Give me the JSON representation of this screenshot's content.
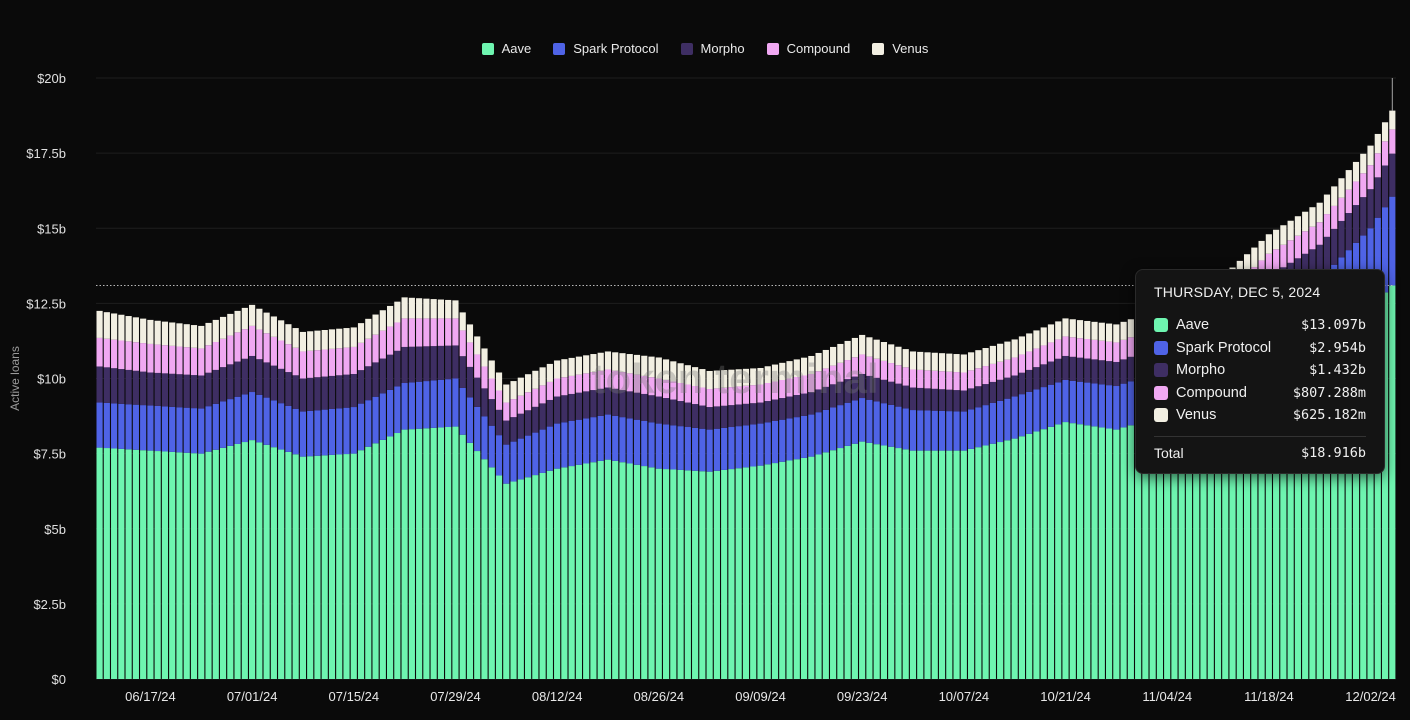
{
  "legend": [
    {
      "name": "Aave",
      "color": "#6ef5b0"
    },
    {
      "name": "Spark Protocol",
      "color": "#4f63e6"
    },
    {
      "name": "Morpho",
      "color": "#3e2e63"
    },
    {
      "name": "Compound",
      "color": "#f0a8f2"
    },
    {
      "name": "Venus",
      "color": "#f2efe2"
    }
  ],
  "watermark": "token terminal",
  "tooltip": {
    "date": "THURSDAY, DEC 5, 2024",
    "rows": [
      {
        "name": "Aave",
        "value": "$13.097b",
        "color": "#6ef5b0"
      },
      {
        "name": "Spark Protocol",
        "value": "$2.954b",
        "color": "#4f63e6"
      },
      {
        "name": "Morpho",
        "value": "$1.432b",
        "color": "#3e2e63"
      },
      {
        "name": "Compound",
        "value": "$807.288m",
        "color": "#f0a8f2"
      },
      {
        "name": "Venus",
        "value": "$625.182m",
        "color": "#f2efe2"
      }
    ],
    "total_label": "Total",
    "total_value": "$18.916b"
  },
  "chart_data": {
    "type": "bar",
    "stacked": true,
    "title": "",
    "xlabel": "",
    "ylabel": "Active loans",
    "ylim": [
      0,
      20
    ],
    "yticks": [
      0,
      2.5,
      5,
      7.5,
      10,
      12.5,
      15,
      17.5,
      20
    ],
    "ytick_labels": [
      "$0",
      "$2.5b",
      "$5b",
      "$7.5b",
      "$10b",
      "$12.5b",
      "$15b",
      "$17.5b",
      "$20b"
    ],
    "unit": "USD billions",
    "xtick_labels": [
      "06/17/24",
      "07/01/24",
      "07/15/24",
      "07/29/24",
      "08/12/24",
      "08/26/24",
      "09/09/24",
      "09/23/24",
      "10/07/24",
      "10/21/24",
      "11/04/24",
      "11/18/24",
      "12/02/24"
    ],
    "start_date": "2024-06-10",
    "end_date": "2024-12-05",
    "legend_position": "top-center",
    "grid": true,
    "highlight_date": "2024-12-05",
    "series": [
      {
        "name": "Aave",
        "color": "#6ef5b0",
        "dates": [
          "2024-06-10",
          "2024-06-17",
          "2024-06-24",
          "2024-07-01",
          "2024-07-08",
          "2024-07-15",
          "2024-07-22",
          "2024-07-29",
          "2024-08-05",
          "2024-08-12",
          "2024-08-19",
          "2024-08-26",
          "2024-09-02",
          "2024-09-09",
          "2024-09-16",
          "2024-09-23",
          "2024-09-30",
          "2024-10-07",
          "2024-10-14",
          "2024-10-21",
          "2024-10-28",
          "2024-11-04",
          "2024-11-11",
          "2024-11-18",
          "2024-11-25",
          "2024-12-02",
          "2024-12-05"
        ],
        "values": [
          7.7,
          7.6,
          7.5,
          7.95,
          7.4,
          7.5,
          8.3,
          8.4,
          6.5,
          7.0,
          7.3,
          7.0,
          6.9,
          7.1,
          7.4,
          7.9,
          7.6,
          7.6,
          8.0,
          8.55,
          8.3,
          8.8,
          9.4,
          10.6,
          11.2,
          12.4,
          13.097
        ]
      },
      {
        "name": "Spark Protocol",
        "color": "#4f63e6",
        "dates": [
          "2024-06-10",
          "2024-06-17",
          "2024-06-24",
          "2024-07-01",
          "2024-07-08",
          "2024-07-15",
          "2024-07-22",
          "2024-07-29",
          "2024-08-05",
          "2024-08-12",
          "2024-08-19",
          "2024-08-26",
          "2024-09-02",
          "2024-09-09",
          "2024-09-16",
          "2024-09-23",
          "2024-09-30",
          "2024-10-07",
          "2024-10-14",
          "2024-10-21",
          "2024-10-28",
          "2024-11-04",
          "2024-11-11",
          "2024-11-18",
          "2024-11-25",
          "2024-12-02",
          "2024-12-05"
        ],
        "values": [
          1.5,
          1.5,
          1.5,
          1.6,
          1.5,
          1.55,
          1.55,
          1.6,
          1.3,
          1.5,
          1.5,
          1.5,
          1.4,
          1.4,
          1.4,
          1.45,
          1.35,
          1.3,
          1.4,
          1.4,
          1.45,
          1.5,
          1.6,
          1.8,
          2.1,
          2.6,
          2.954
        ]
      },
      {
        "name": "Morpho",
        "color": "#3e2e63",
        "dates": [
          "2024-06-10",
          "2024-06-17",
          "2024-06-24",
          "2024-07-01",
          "2024-07-08",
          "2024-07-15",
          "2024-07-22",
          "2024-07-29",
          "2024-08-05",
          "2024-08-12",
          "2024-08-19",
          "2024-08-26",
          "2024-09-02",
          "2024-09-09",
          "2024-09-16",
          "2024-09-23",
          "2024-09-30",
          "2024-10-07",
          "2024-10-14",
          "2024-10-21",
          "2024-10-28",
          "2024-11-04",
          "2024-11-11",
          "2024-11-18",
          "2024-11-25",
          "2024-12-02",
          "2024-12-05"
        ],
        "values": [
          1.2,
          1.1,
          1.1,
          1.2,
          1.1,
          1.1,
          1.2,
          1.1,
          0.8,
          0.9,
          0.9,
          0.9,
          0.75,
          0.7,
          0.75,
          0.8,
          0.75,
          0.7,
          0.7,
          0.8,
          0.8,
          0.85,
          0.9,
          1.0,
          1.15,
          1.3,
          1.432
        ]
      },
      {
        "name": "Compound",
        "color": "#f0a8f2",
        "dates": [
          "2024-06-10",
          "2024-06-17",
          "2024-06-24",
          "2024-07-01",
          "2024-07-08",
          "2024-07-15",
          "2024-07-22",
          "2024-07-29",
          "2024-08-05",
          "2024-08-12",
          "2024-08-19",
          "2024-08-26",
          "2024-09-02",
          "2024-09-09",
          "2024-09-16",
          "2024-09-23",
          "2024-09-30",
          "2024-10-07",
          "2024-10-14",
          "2024-10-21",
          "2024-10-28",
          "2024-11-04",
          "2024-11-11",
          "2024-11-18",
          "2024-11-25",
          "2024-12-02",
          "2024-12-05"
        ],
        "values": [
          0.95,
          0.95,
          0.9,
          1.0,
          0.9,
          0.9,
          0.95,
          0.9,
          0.6,
          0.6,
          0.6,
          0.6,
          0.6,
          0.6,
          0.6,
          0.65,
          0.6,
          0.6,
          0.6,
          0.65,
          0.65,
          0.65,
          0.7,
          0.75,
          0.75,
          0.8,
          0.807
        ]
      },
      {
        "name": "Venus",
        "color": "#f2efe2",
        "dates": [
          "2024-06-10",
          "2024-06-17",
          "2024-06-24",
          "2024-07-01",
          "2024-07-08",
          "2024-07-15",
          "2024-07-22",
          "2024-07-29",
          "2024-08-05",
          "2024-08-12",
          "2024-08-19",
          "2024-08-26",
          "2024-09-02",
          "2024-09-09",
          "2024-09-16",
          "2024-09-23",
          "2024-09-30",
          "2024-10-07",
          "2024-10-14",
          "2024-10-21",
          "2024-10-28",
          "2024-11-04",
          "2024-11-11",
          "2024-11-18",
          "2024-11-25",
          "2024-12-02",
          "2024-12-05"
        ],
        "values": [
          0.9,
          0.8,
          0.75,
          0.7,
          0.65,
          0.65,
          0.7,
          0.6,
          0.6,
          0.6,
          0.6,
          0.7,
          0.6,
          0.55,
          0.6,
          0.65,
          0.6,
          0.6,
          0.6,
          0.6,
          0.6,
          0.6,
          0.65,
          0.65,
          0.65,
          0.65,
          0.625
        ]
      }
    ]
  }
}
